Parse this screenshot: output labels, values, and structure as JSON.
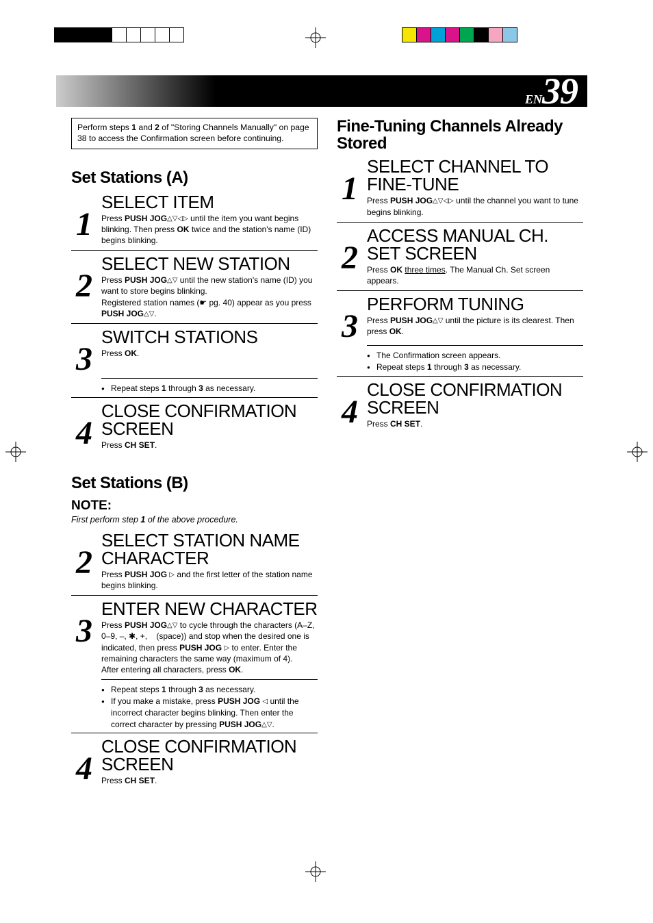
{
  "page": {
    "prefix": "EN",
    "number": "39"
  },
  "crop_color_bars": {
    "left": [
      "#000000",
      "#000000",
      "#000000",
      "#000000",
      "#ffffff",
      "#ffffff",
      "#ffffff",
      "#ffffff",
      "#ffffff"
    ],
    "right": [
      "#f6e500",
      "#d9138a",
      "#00a1d6",
      "#d9138a",
      "#00a550",
      "#000000",
      "#f6a6c1",
      "#8bc8e8"
    ],
    "border": "#000000"
  },
  "intro": "Perform steps <b>1</b> and <b>2</b> of \"Storing Channels Manually\" on page 38 to access the Confirmation screen before continuing.",
  "sections": {
    "a": {
      "title": "Set Stations (A)",
      "steps": [
        {
          "n": "1",
          "head": "SELECT ITEM",
          "body": "Press <b>PUSH JOG</b><span class='tri'>&#9651;&#9661;&#9665;&#9655;</span> until the item you want begins blinking. Then press <b>OK</b> twice and the station's name (ID) begins blinking."
        },
        {
          "n": "2",
          "head": "SELECT NEW STATION",
          "body": "Press <b>PUSH JOG</b><span class='tri'>&#9651;&#9661;</span> until the new station's name (ID) you want to store begins blinking.<br>Registered station names (<span class='ref-hand'>&#9755;</span> pg. 40) appear as you press <b>PUSH JOG</b><span class='tri'>&#9651;&#9661;</span>."
        },
        {
          "n": "3",
          "head": "SWITCH STATIONS",
          "body": "Press <b>OK</b>.",
          "bullets": [
            "Repeat steps <b>1</b> through <b>3</b> as necessary."
          ]
        },
        {
          "n": "4",
          "head": "CLOSE CONFIRMATION SCREEN",
          "body": "Press <b>CH SET</b>.",
          "noborder": true
        }
      ]
    },
    "b": {
      "title": "Set Stations (B)",
      "note_title": "NOTE:",
      "note_sub": "First perform step <b>1</b> of the above procedure.",
      "steps": [
        {
          "n": "2",
          "head": "SELECT STATION NAME CHARACTER",
          "body": "Press <b>PUSH JOG</b> <span class='tri'>&#9655;</span> and the first letter of the station name begins blinking."
        },
        {
          "n": "3",
          "head": "ENTER NEW CHARACTER",
          "body": "Press <b>PUSH JOG</b><span class='tri'>&#9651;&#9661;</span> to cycle through the characters (A&ndash;Z, 0&ndash;9, &ndash;, &#10033;, +, &nbsp;&nbsp;&nbsp;(space)) and stop when the desired one is indicated, then press <b>PUSH JOG</b> <span class='tri'>&#9655;</span> to enter. Enter the remaining characters the same way (maximum of 4).<br>After entering all characters, press <b>OK</b>.",
          "bullets": [
            "Repeat steps <b>1</b> through <b>3</b> as necessary.",
            "If you make a mistake, press <b>PUSH JOG</b> <span class='tri'>&#9665;</span> until the incorrect character begins blinking. Then enter the correct character by pressing <b>PUSH JOG</b><span class='tri'>&#9651;&#9661;</span>."
          ]
        },
        {
          "n": "4",
          "head": "CLOSE CONFIRMATION SCREEN",
          "body": "Press <b>CH SET</b>.",
          "noborder": true
        }
      ]
    },
    "c": {
      "title": "Fine-Tuning Channels Already Stored",
      "steps": [
        {
          "n": "1",
          "head": "SELECT CHANNEL TO FINE-TUNE",
          "body": "Press <b>PUSH JOG</b><span class='tri'>&#9651;&#9661;&#9665;&#9655;</span> until the channel you want to tune begins blinking."
        },
        {
          "n": "2",
          "head": "ACCESS MANUAL CH. SET SCREEN",
          "body": "Press <b>OK</b> <span class='underline'>three times</span>. The Manual Ch. Set screen appears."
        },
        {
          "n": "3",
          "head": "PERFORM TUNING",
          "body": "Press <b>PUSH JOG</b><span class='tri'>&#9651;&#9661;</span> until the picture is its clearest. Then press <b>OK</b>.",
          "bullets": [
            "The Confirmation screen appears.",
            "Repeat steps <b>1</b> through <b>3</b> as necessary."
          ]
        },
        {
          "n": "4",
          "head": "CLOSE CONFIRMATION SCREEN",
          "body": "Press <b>CH SET</b>.",
          "noborder": true
        }
      ]
    }
  }
}
